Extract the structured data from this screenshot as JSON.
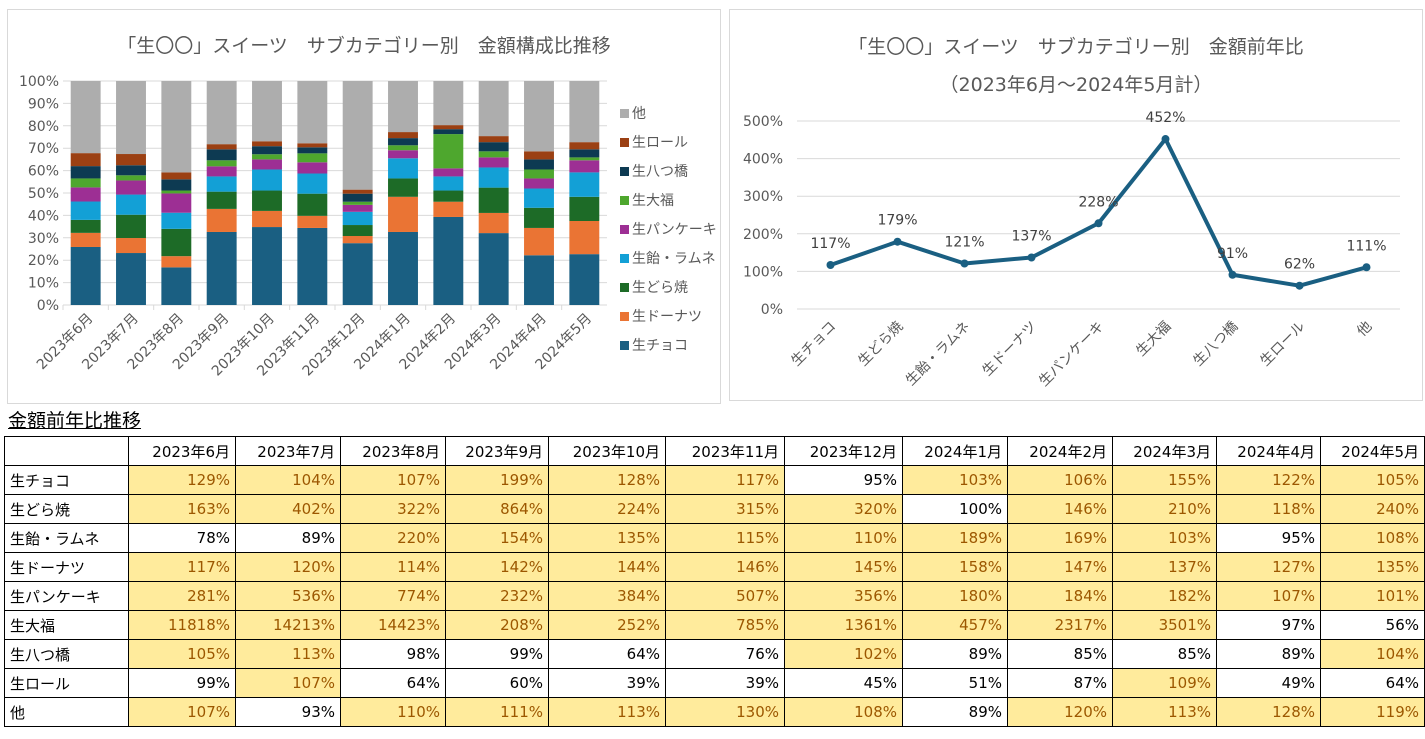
{
  "stacked_chart": {
    "title": "「生〇〇」スイーツ　サブカテゴリー別　金額構成比推移"
  },
  "line_chart": {
    "title_line1": "「生〇〇」スイーツ　サブカテゴリー別　金額前年比",
    "title_line2": "（2023年6月～2024年5月計）"
  },
  "chart_data": [
    {
      "type": "bar",
      "stacked": true,
      "percent_stacked": true,
      "title": "「生〇〇」スイーツ　サブカテゴリー別　金額構成比推移",
      "xlabel": "",
      "ylabel": "",
      "ylim": [
        0,
        100
      ],
      "yticks": [
        "0%",
        "10%",
        "20%",
        "30%",
        "40%",
        "50%",
        "60%",
        "70%",
        "80%",
        "90%",
        "100%"
      ],
      "grid": true,
      "legend": "right",
      "categories": [
        "2023年6月",
        "2023年7月",
        "2023年8月",
        "2023年9月",
        "2023年10月",
        "2023年11月",
        "2023年12月",
        "2024年1月",
        "2024年2月",
        "2024年3月",
        "2024年4月",
        "2024年5月"
      ],
      "series": [
        {
          "name": "生チョコ",
          "color": "#1a5f82",
          "values": [
            25.9,
            23.2,
            16.8,
            32.6,
            34.8,
            34.4,
            27.6,
            32.6,
            39.3,
            32.1,
            22.2,
            22.7
          ]
        },
        {
          "name": "生ドーナツ",
          "color": "#ea7434",
          "values": [
            6.3,
            6.7,
            5.0,
            10.3,
            7.2,
            5.4,
            3.2,
            15.7,
            6.8,
            9.0,
            12.2,
            14.8
          ]
        },
        {
          "name": "生どら焼",
          "color": "#1d6b27",
          "values": [
            5.8,
            10.4,
            12.2,
            7.7,
            9.1,
            9.9,
            4.9,
            8.2,
            5.0,
            11.3,
            9.0,
            10.8
          ]
        },
        {
          "name": "生飴・ラムネ",
          "color": "#13a0d6",
          "values": [
            8.2,
            9.0,
            7.2,
            6.8,
            9.4,
            9.0,
            5.9,
            9.0,
            6.3,
            9.0,
            8.6,
            10.9
          ]
        },
        {
          "name": "生パンケーキ",
          "color": "#9d2f94",
          "values": [
            6.3,
            6.3,
            8.6,
            4.5,
            4.5,
            5.0,
            3.1,
            3.6,
            3.6,
            4.5,
            4.5,
            5.4
          ]
        },
        {
          "name": "生大福",
          "color": "#4ea72e",
          "values": [
            4.0,
            2.3,
            1.3,
            2.7,
            2.3,
            4.0,
            1.4,
            2.2,
            15.3,
            2.7,
            4.0,
            1.3
          ]
        },
        {
          "name": "生八つ橋",
          "color": "#0d3a52",
          "values": [
            5.5,
            4.5,
            5.0,
            4.9,
            3.6,
            2.7,
            3.6,
            3.2,
            2.2,
            4.1,
            4.5,
            3.6
          ]
        },
        {
          "name": "生ロール",
          "color": "#9b4013",
          "values": [
            5.8,
            5.0,
            3.1,
            2.3,
            2.2,
            1.8,
            1.8,
            2.7,
            1.8,
            2.7,
            3.6,
            3.2
          ]
        },
        {
          "name": "他",
          "color": "#adadad",
          "values": [
            32.2,
            32.6,
            40.8,
            28.2,
            26.9,
            27.8,
            48.5,
            22.8,
            19.7,
            24.6,
            31.4,
            27.3
          ]
        }
      ]
    },
    {
      "type": "line",
      "title": "「生〇〇」スイーツ　サブカテゴリー別　金額前年比（2023年6月～2024年5月計）",
      "xlabel": "",
      "ylabel": "",
      "ylim": [
        0,
        500
      ],
      "yticks": [
        "0%",
        "100%",
        "200%",
        "300%",
        "400%",
        "500%"
      ],
      "grid": true,
      "color": "#1a5f82",
      "categories": [
        "生チョコ",
        "生どら焼",
        "生飴・ラムネ",
        "生ドーナツ",
        "生パンケーキ",
        "生大福",
        "生八つ橋",
        "生ロール",
        "他"
      ],
      "values": [
        117,
        179,
        121,
        137,
        228,
        452,
        91,
        62,
        111
      ],
      "data_labels": [
        "117%",
        "179%",
        "121%",
        "137%",
        "228%",
        "452%",
        "91%",
        "62%",
        "111%"
      ]
    }
  ],
  "table": {
    "title": "金額前年比推移",
    "highlight_color": "#ffeb9c",
    "columns": [
      "2023年6月",
      "2023年7月",
      "2023年8月",
      "2023年9月",
      "2023年10月",
      "2023年11月",
      "2023年12月",
      "2024年1月",
      "2024年2月",
      "2024年3月",
      "2024年4月",
      "2024年5月"
    ],
    "rows": [
      {
        "label": "生チョコ",
        "values": [
          "129%",
          "104%",
          "107%",
          "199%",
          "128%",
          "117%",
          "95%",
          "103%",
          "106%",
          "155%",
          "122%",
          "105%"
        ]
      },
      {
        "label": "生どら焼",
        "values": [
          "163%",
          "402%",
          "322%",
          "864%",
          "224%",
          "315%",
          "320%",
          "100%",
          "146%",
          "210%",
          "118%",
          "240%"
        ]
      },
      {
        "label": "生飴・ラムネ",
        "values": [
          "78%",
          "89%",
          "220%",
          "154%",
          "135%",
          "115%",
          "110%",
          "189%",
          "169%",
          "103%",
          "95%",
          "108%"
        ]
      },
      {
        "label": "生ドーナツ",
        "values": [
          "117%",
          "120%",
          "114%",
          "142%",
          "144%",
          "146%",
          "145%",
          "158%",
          "147%",
          "137%",
          "127%",
          "135%"
        ]
      },
      {
        "label": "生パンケーキ",
        "values": [
          "281%",
          "536%",
          "774%",
          "232%",
          "384%",
          "507%",
          "356%",
          "180%",
          "184%",
          "182%",
          "107%",
          "101%"
        ]
      },
      {
        "label": "生大福",
        "values": [
          "11818%",
          "14213%",
          "14423%",
          "208%",
          "252%",
          "785%",
          "1361%",
          "457%",
          "2317%",
          "3501%",
          "97%",
          "56%"
        ]
      },
      {
        "label": "生八つ橋",
        "values": [
          "105%",
          "113%",
          "98%",
          "99%",
          "64%",
          "76%",
          "102%",
          "89%",
          "85%",
          "85%",
          "89%",
          "104%"
        ]
      },
      {
        "label": "生ロール",
        "values": [
          "99%",
          "107%",
          "64%",
          "60%",
          "39%",
          "39%",
          "45%",
          "51%",
          "87%",
          "109%",
          "49%",
          "64%"
        ]
      },
      {
        "label": "他",
        "values": [
          "107%",
          "93%",
          "110%",
          "111%",
          "113%",
          "130%",
          "108%",
          "89%",
          "120%",
          "113%",
          "128%",
          "119%"
        ]
      }
    ]
  }
}
